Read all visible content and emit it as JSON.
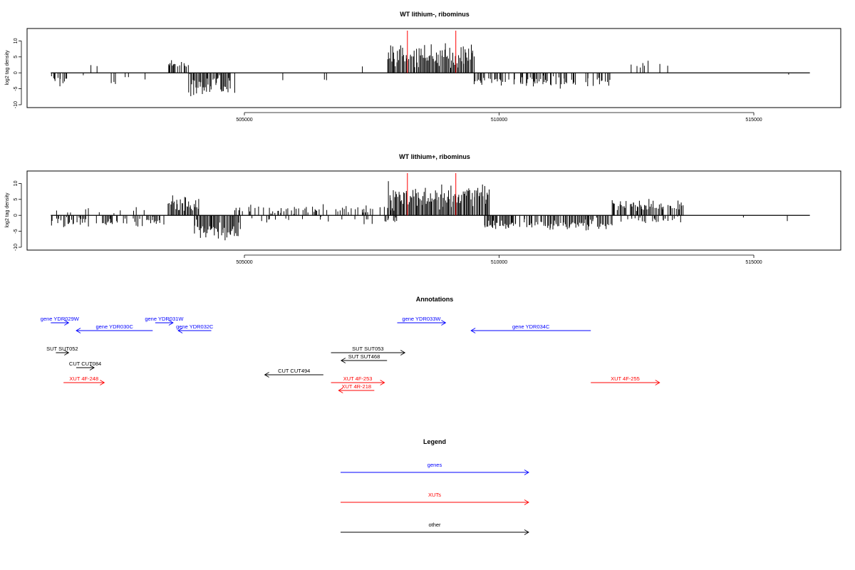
{
  "chart_data": [
    {
      "type": "bar",
      "title": "WT lithium-, ribominus",
      "ylabel": "log2 tag density",
      "xlim": [
        501000,
        517000
      ],
      "ylim": [
        -10,
        13
      ],
      "yticks": [
        10,
        5,
        0,
        -5,
        -10
      ],
      "xticks": [
        505000,
        510000,
        515000
      ],
      "xtick_labels": [
        "505000",
        "510000",
        "515000"
      ],
      "markers_x": [
        508200,
        509150
      ],
      "baseline": [
        501200,
        516100
      ],
      "series": [
        {
          "color": "#000000",
          "seed": 11,
          "segments": [
            {
              "range": [
                501200,
                501500
              ],
              "strand": -1,
              "density": 0.5,
              "mean": 2.5,
              "jitter": 1.5
            },
            {
              "range": [
                501600,
                502600
              ],
              "strand": 1,
              "density": 0.04,
              "mean": 2.5,
              "jitter": 1
            },
            {
              "range": [
                501800,
                503100
              ],
              "strand": -1,
              "density": 0.12,
              "mean": 2.5,
              "jitter": 1.5
            },
            {
              "range": [
                503500,
                503900
              ],
              "strand": 1,
              "density": 0.7,
              "mean": 2.3,
              "jitter": 1
            },
            {
              "range": [
                503900,
                504800
              ],
              "strand": -1,
              "density": 0.95,
              "mean": 4,
              "jitter": 2.5
            },
            {
              "range": [
                505200,
                505800
              ],
              "strand": -1,
              "density": 0.03,
              "mean": 1.5,
              "jitter": 1
            },
            {
              "range": [
                505700,
                508000
              ],
              "strand": 1,
              "density": 0.05,
              "mean": 2,
              "jitter": 1
            },
            {
              "range": [
                505800,
                507600
              ],
              "strand": -1,
              "density": 0.05,
              "mean": 2,
              "jitter": 1
            },
            {
              "range": [
                507800,
                509500
              ],
              "strand": 1,
              "density": 1.0,
              "mean": 5.5,
              "jitter": 3
            },
            {
              "range": [
                509500,
                511500
              ],
              "strand": -1,
              "density": 0.55,
              "mean": 2.5,
              "jitter": 1.5
            },
            {
              "range": [
                511500,
                512300
              ],
              "strand": -1,
              "density": 0.35,
              "mean": 2.5,
              "jitter": 1.5
            },
            {
              "range": [
                512500,
                513300
              ],
              "strand": 1,
              "density": 0.25,
              "mean": 2.5,
              "jitter": 1.5
            },
            {
              "range": [
                514700,
                515800
              ],
              "strand": -1,
              "density": 0.02,
              "mean": 1.5,
              "jitter": 1
            }
          ]
        }
      ]
    },
    {
      "type": "bar",
      "title": "WT lithium+, ribominus",
      "ylabel": "log2 tag density",
      "xlim": [
        501000,
        517000
      ],
      "ylim": [
        -10,
        13
      ],
      "yticks": [
        10,
        5,
        0,
        -5,
        -10
      ],
      "xticks": [
        505000,
        510000,
        515000
      ],
      "xtick_labels": [
        "505000",
        "510000",
        "515000"
      ],
      "markers_x": [
        508200,
        509150
      ],
      "baseline": [
        501200,
        516100
      ],
      "series": [
        {
          "color": "#000000",
          "seed": 29,
          "segments": [
            {
              "range": [
                501200,
                503400
              ],
              "strand": -1,
              "density": 0.55,
              "mean": 2,
              "jitter": 1.2
            },
            {
              "range": [
                501300,
                503200
              ],
              "strand": 1,
              "density": 0.12,
              "mean": 1.5,
              "jitter": 1
            },
            {
              "range": [
                503500,
                504100
              ],
              "strand": 1,
              "density": 0.9,
              "mean": 3.5,
              "jitter": 2
            },
            {
              "range": [
                504000,
                504900
              ],
              "strand": -1,
              "density": 0.95,
              "mean": 5,
              "jitter": 2.5
            },
            {
              "range": [
                504800,
                508000
              ],
              "strand": 1,
              "density": 0.3,
              "mean": 1.8,
              "jitter": 1.2
            },
            {
              "range": [
                505000,
                508000
              ],
              "strand": -1,
              "density": 0.2,
              "mean": 1.5,
              "jitter": 1
            },
            {
              "range": [
                507800,
                509800
              ],
              "strand": 1,
              "density": 1.0,
              "mean": 6,
              "jitter": 3
            },
            {
              "range": [
                509700,
                512200
              ],
              "strand": -1,
              "density": 0.8,
              "mean": 3,
              "jitter": 1.5
            },
            {
              "range": [
                512200,
                513600
              ],
              "strand": 1,
              "density": 0.85,
              "mean": 3,
              "jitter": 1.5
            },
            {
              "range": [
                512300,
                513600
              ],
              "strand": -1,
              "density": 0.25,
              "mean": 1.5,
              "jitter": 1
            },
            {
              "range": [
                514700,
                515800
              ],
              "strand": -1,
              "density": 0.03,
              "mean": 2,
              "jitter": 1.5
            }
          ]
        }
      ]
    }
  ],
  "annotations": {
    "title": "Annotations",
    "xlim": [
      501000,
      517000
    ],
    "features": [
      {
        "label": "gene YDR029W",
        "start": 501200,
        "end": 501550,
        "strand": 1,
        "row": 0,
        "color": "#0000ff"
      },
      {
        "label": "gene YDR030C",
        "start": 501700,
        "end": 503200,
        "strand": -1,
        "row": 1,
        "color": "#0000ff"
      },
      {
        "label": "gene YDR031W",
        "start": 503250,
        "end": 503600,
        "strand": 1,
        "row": 0,
        "color": "#0000ff"
      },
      {
        "label": "gene YDR032C",
        "start": 503700,
        "end": 504350,
        "strand": -1,
        "row": 1,
        "color": "#0000ff"
      },
      {
        "label": "gene YDR033W",
        "start": 508000,
        "end": 508950,
        "strand": 1,
        "row": 0,
        "color": "#0000ff"
      },
      {
        "label": "gene YDR034C",
        "start": 509450,
        "end": 511800,
        "strand": -1,
        "row": 1,
        "color": "#0000ff"
      },
      {
        "label": "SUT SUT052",
        "start": 501300,
        "end": 501550,
        "strand": 1,
        "row": 3,
        "color": "#000000"
      },
      {
        "label": "CUT CUT084",
        "start": 501700,
        "end": 502050,
        "strand": 1,
        "row": 5,
        "color": "#000000"
      },
      {
        "label": "XUT 4F-248",
        "start": 501450,
        "end": 502250,
        "strand": 1,
        "row": 7,
        "color": "#ff0000"
      },
      {
        "label": "SUT SUT053",
        "start": 506700,
        "end": 508150,
        "strand": 1,
        "row": 3,
        "color": "#000000"
      },
      {
        "label": "SUT SUT468",
        "start": 506900,
        "end": 507800,
        "strand": -1,
        "row": 4,
        "color": "#000000"
      },
      {
        "label": "CUT CUT494",
        "start": 505400,
        "end": 506550,
        "strand": -1,
        "row": 6,
        "color": "#000000"
      },
      {
        "label": "XUT 4F-253",
        "start": 506700,
        "end": 507750,
        "strand": 1,
        "row": 7,
        "color": "#ff0000"
      },
      {
        "label": "XUT 4R-218",
        "start": 506850,
        "end": 507550,
        "strand": -1,
        "row": 8,
        "color": "#ff0000"
      },
      {
        "label": "XUT 4F-255",
        "start": 511800,
        "end": 513150,
        "strand": 1,
        "row": 7,
        "color": "#ff0000"
      }
    ]
  },
  "legend": {
    "title": "Legend",
    "items": [
      {
        "label": "genes",
        "color": "#0000ff"
      },
      {
        "label": "XUTs",
        "color": "#ff0000"
      },
      {
        "label": "other",
        "color": "#000000"
      }
    ]
  }
}
